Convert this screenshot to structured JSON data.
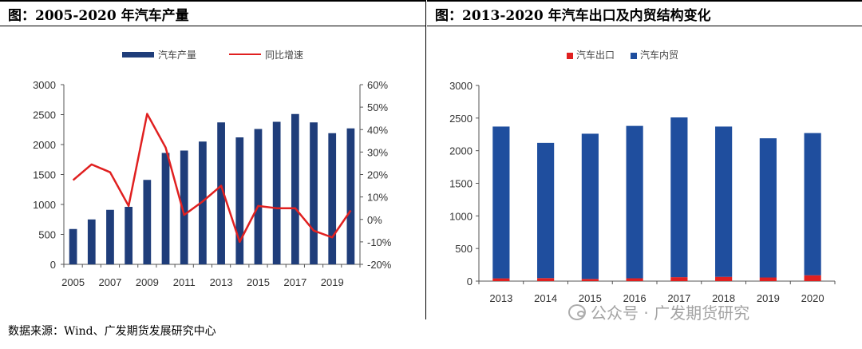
{
  "left": {
    "title": "图：2005-2020 年汽车产量",
    "legend": {
      "bar_label": "汽车产量",
      "line_label": "同比增速"
    },
    "chart_data": {
      "type": "bar+line",
      "x": [
        2005,
        2006,
        2007,
        2008,
        2009,
        2010,
        2011,
        2012,
        2013,
        2014,
        2015,
        2016,
        2017,
        2018,
        2019,
        2020
      ],
      "x_tick_labels": [
        "2005",
        "2007",
        "2009",
        "2011",
        "2013",
        "2015",
        "2017",
        "2019"
      ],
      "series": [
        {
          "name": "汽车产量",
          "type": "bar",
          "axis": "left",
          "values": [
            590,
            750,
            910,
            960,
            1410,
            1860,
            1900,
            2050,
            2370,
            2120,
            2260,
            2380,
            2510,
            2370,
            2190,
            2270
          ]
        },
        {
          "name": "同比增速",
          "type": "line",
          "axis": "right",
          "values": [
            17.5,
            24.5,
            21,
            6,
            47,
            32,
            2,
            8,
            15,
            -10,
            6,
            5,
            5,
            -5,
            -8,
            4
          ]
        }
      ],
      "yleft_ticks": [
        "0",
        "500",
        "1000",
        "1500",
        "2000",
        "2500",
        "3000"
      ],
      "yleft_range": [
        0,
        3000
      ],
      "yright_ticks": [
        "-20%",
        "-10%",
        "0%",
        "10%",
        "20%",
        "30%",
        "40%",
        "50%",
        "60%"
      ],
      "yright_range": [
        -20,
        60
      ],
      "colors": {
        "bar": "#1f3d7a",
        "line": "#e02020"
      },
      "legend_position": "top-center"
    }
  },
  "right": {
    "title": "图：2013-2020 年汽车出口及内贸结构变化",
    "legend": {
      "export_label": "汽车出口",
      "domestic_label": "汽车内贸"
    },
    "chart_data": {
      "type": "bar",
      "stacked": true,
      "categories": [
        "2013",
        "2014",
        "2015",
        "2016",
        "2017",
        "2018",
        "2019",
        "2020"
      ],
      "series": [
        {
          "name": "汽车出口",
          "values": [
            42,
            46,
            34,
            43,
            60,
            65,
            55,
            90
          ]
        },
        {
          "name": "汽车内贸",
          "values": [
            2328,
            2074,
            2226,
            2337,
            2450,
            2305,
            2135,
            2180
          ]
        }
      ],
      "y_ticks": [
        "0",
        "500",
        "1000",
        "1500",
        "2000",
        "2500",
        "3000"
      ],
      "ylim": [
        0,
        3000
      ],
      "colors": {
        "export": "#e02020",
        "domestic": "#1f4e9e"
      },
      "legend_position": "top-center"
    }
  },
  "footer": {
    "source": "数据来源：Wind、广发期货发展研究中心"
  },
  "watermark": {
    "text": "公众号 · 广发期货研究"
  }
}
